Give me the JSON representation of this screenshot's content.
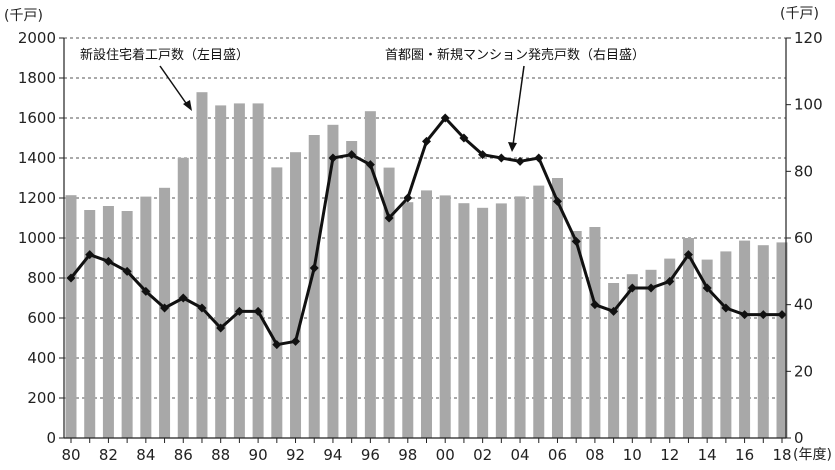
{
  "chart_data": {
    "type": "bar+line",
    "x": [
      "80",
      "81",
      "82",
      "83",
      "84",
      "85",
      "86",
      "87",
      "88",
      "89",
      "90",
      "91",
      "92",
      "93",
      "94",
      "95",
      "96",
      "97",
      "98",
      "99",
      "00",
      "01",
      "02",
      "03",
      "04",
      "05",
      "06",
      "07",
      "08",
      "09",
      "10",
      "11",
      "12",
      "13",
      "14",
      "15",
      "16",
      "17",
      "18"
    ],
    "x_tick_labels": [
      "80",
      "82",
      "84",
      "86",
      "88",
      "90",
      "92",
      "94",
      "96",
      "98",
      "00",
      "02",
      "04",
      "06",
      "08",
      "10",
      "12",
      "14",
      "16",
      "18"
    ],
    "x_unit": "(年度)",
    "left_axis": {
      "unit": "(千戸)",
      "ylim": [
        0,
        2000
      ],
      "ticks": [
        "0",
        "200",
        "400",
        "600",
        "800",
        "1000",
        "1200",
        "1400",
        "1600",
        "1800",
        "2000"
      ]
    },
    "right_axis": {
      "unit": "(千戸)",
      "ylim": [
        0,
        120
      ],
      "ticks": [
        "0",
        "20",
        "40",
        "60",
        "80",
        "100",
        "120"
      ]
    },
    "series": [
      {
        "name": "新設住宅着工戸数（左目盛）",
        "kind": "bar",
        "axis": "left",
        "color": "#a8a8a8",
        "values": [
          1214,
          1140,
          1160,
          1135,
          1207,
          1251,
          1401,
          1729,
          1663,
          1673,
          1673,
          1353,
          1429,
          1515,
          1566,
          1485,
          1634,
          1352,
          1179,
          1238,
          1213,
          1174,
          1151,
          1173,
          1208,
          1262,
          1300,
          1035,
          1055,
          775,
          819,
          841,
          897,
          1000,
          892,
          933,
          987,
          964,
          978
        ]
      },
      {
        "name": "首都圏・新規マンション発売戸数（右目盛）",
        "kind": "line",
        "axis": "right",
        "color": "#111111",
        "marker": "diamond",
        "values": [
          48,
          55,
          53,
          50,
          44,
          39,
          42,
          39,
          33,
          38,
          38,
          28,
          29,
          51,
          84,
          85,
          82,
          66,
          72,
          89,
          96,
          90,
          85,
          84,
          83,
          84,
          71,
          59,
          40,
          38,
          45,
          45,
          47,
          55,
          45,
          39,
          37,
          37,
          37
        ]
      }
    ],
    "annotations": [
      {
        "text": "新設住宅着工戸数（左目盛）",
        "points_to": "bar series"
      },
      {
        "text": "首都圏・新規マンション発売戸数（右目盛）",
        "points_to": "line series"
      }
    ],
    "grid": {
      "horizontal_dashed": true
    }
  }
}
